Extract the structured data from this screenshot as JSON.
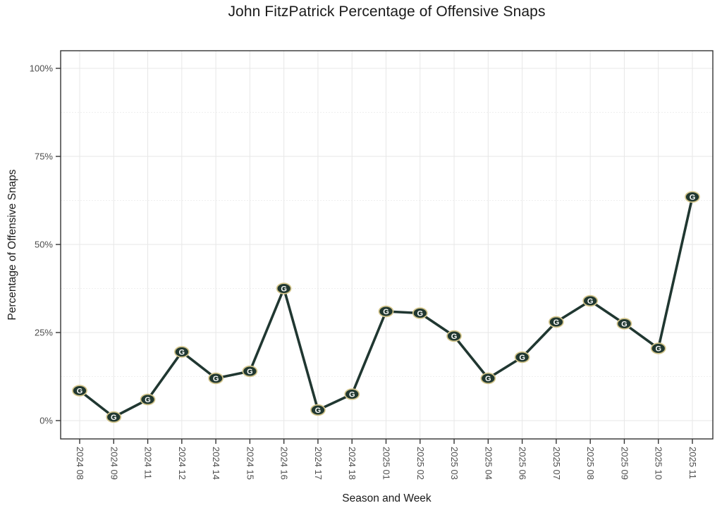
{
  "chart_data": {
    "type": "line",
    "title": "John FitzPatrick Percentage of Offensive Snaps",
    "xlabel": "Season and Week",
    "ylabel": "Percentage of Offensive Snaps",
    "categories": [
      "2024 08",
      "2024 09",
      "2024 11",
      "2024 12",
      "2024 14",
      "2024 15",
      "2024 16",
      "2024 17",
      "2024 18",
      "2025 01",
      "2025 02",
      "2025 03",
      "2025 04",
      "2025 06",
      "2025 07",
      "2025 08",
      "2025 09",
      "2025 10",
      "2025 11"
    ],
    "values": [
      8.5,
      1,
      6,
      19.5,
      12,
      14,
      37.5,
      3,
      7.5,
      31,
      30.5,
      24,
      12,
      18,
      28,
      34,
      27.5,
      20.5,
      63.5
    ],
    "ylim": [
      0,
      100
    ],
    "y_ticks": [
      {
        "value": 0,
        "label": "0%"
      },
      {
        "value": 25,
        "label": "25%"
      },
      {
        "value": 50,
        "label": "50%"
      },
      {
        "value": 75,
        "label": "75%"
      },
      {
        "value": 100,
        "label": "100%"
      }
    ],
    "y_minor": [
      12.5,
      37.5,
      62.5,
      87.5
    ],
    "grid": "on",
    "legend": "none",
    "marker": "green-bay-packers-logo",
    "marker_letter": "G",
    "colors": {
      "line": "#203731",
      "marker_fill": "#213830",
      "marker_ring": "#d3c58b",
      "marker_letter": "#ffffff",
      "grid_major": "#e7e7e7",
      "grid_minor": "#efefef",
      "axis": "#333333",
      "tick_label": "#4d4d4d",
      "title": "#1a1a1a"
    }
  }
}
